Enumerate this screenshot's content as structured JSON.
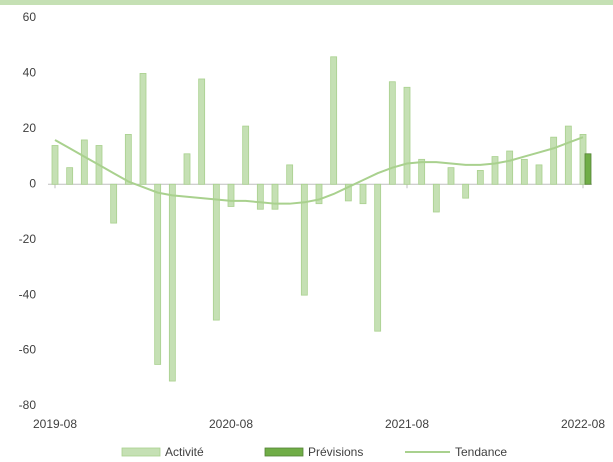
{
  "chart_data": {
    "type": "bar",
    "categories": [
      "2019-08",
      null,
      null,
      null,
      null,
      null,
      null,
      null,
      null,
      null,
      null,
      null,
      "2020-08",
      null,
      null,
      null,
      null,
      null,
      null,
      null,
      null,
      null,
      null,
      null,
      "2021-08",
      null,
      null,
      null,
      null,
      null,
      null,
      null,
      null,
      null,
      null,
      null,
      "2022-08"
    ],
    "series": [
      {
        "name": "Activité",
        "type": "bar",
        "color": "#c5e0b4",
        "values": [
          14,
          6,
          16,
          14,
          -14,
          18,
          40,
          -65,
          -71,
          11,
          38,
          -49,
          -8,
          21,
          -9,
          -9,
          7,
          -40,
          -7,
          46,
          -6,
          -7,
          -53,
          37,
          35,
          9,
          -10,
          6,
          -5,
          5,
          10,
          12,
          9,
          7,
          17,
          21,
          18
        ]
      },
      {
        "name": "Prévisions",
        "type": "bar",
        "color": "#70ad47",
        "values": [
          null,
          null,
          null,
          null,
          null,
          null,
          null,
          null,
          null,
          null,
          null,
          null,
          null,
          null,
          null,
          null,
          null,
          null,
          null,
          null,
          null,
          null,
          null,
          null,
          null,
          null,
          null,
          null,
          null,
          null,
          null,
          null,
          null,
          null,
          null,
          null,
          11
        ]
      },
      {
        "name": "Tendance",
        "type": "line",
        "color": "#a9d18e",
        "values": [
          16,
          13,
          10,
          7,
          4,
          1,
          -1,
          -3,
          -4,
          -4.5,
          -5,
          -5.5,
          -6,
          -6,
          -6.5,
          -7,
          -7,
          -6.5,
          -5.5,
          -3.5,
          -1,
          1.5,
          4,
          6,
          7.5,
          8,
          8,
          7.5,
          7,
          7,
          7.5,
          8.5,
          10,
          11.5,
          13,
          15,
          17
        ]
      }
    ],
    "ylim": [
      -80,
      60
    ],
    "yticks": [
      -80,
      -60,
      -40,
      -20,
      0,
      20,
      40,
      60
    ],
    "legend": "bottom"
  }
}
